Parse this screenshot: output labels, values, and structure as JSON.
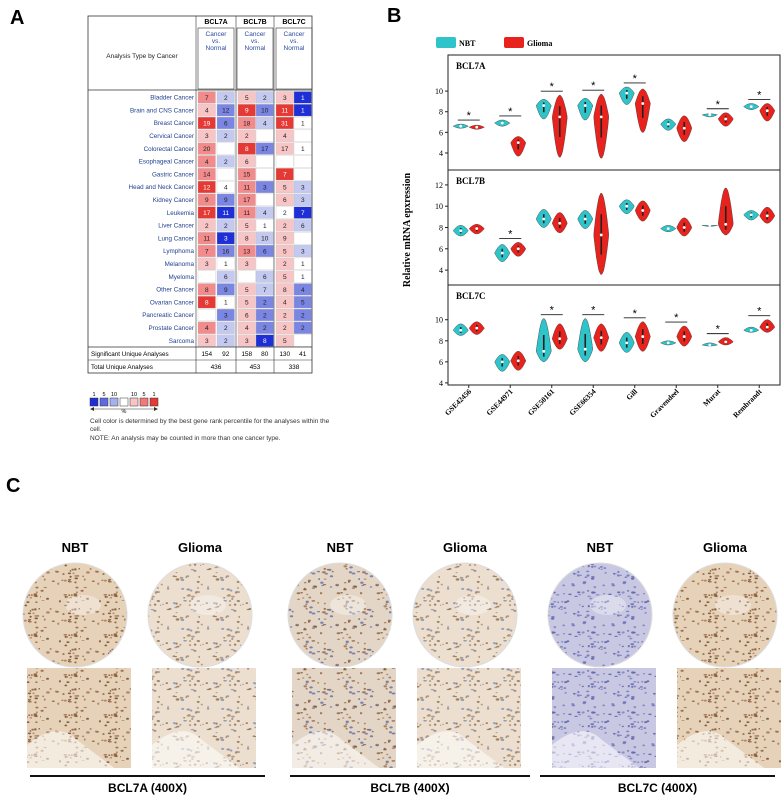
{
  "panel_a": {
    "label": "A",
    "header": "Analysis Type by Cancer",
    "genes": [
      "BCL7A",
      "BCL7B",
      "BCL7C"
    ],
    "subheader": "Cancer vs. Normal",
    "rows": [
      {
        "name": "Bladder Cancer",
        "values": [
          7,
          2,
          5,
          2,
          3,
          1
        ],
        "colors": [
          "#f28b8b",
          "#c4c9f0",
          "#f7c5c5",
          "#c4c9f0",
          "#f7c5c5",
          "#1f2fd6"
        ]
      },
      {
        "name": "Brain and CNS Cancer",
        "values": [
          4,
          12,
          9,
          10,
          11,
          1
        ],
        "colors": [
          "#f7c5c5",
          "#7b86e2",
          "#e53935",
          "#7b86e2",
          "#e53935",
          "#1f2fd6"
        ]
      },
      {
        "name": "Breast Cancer",
        "values": [
          19,
          6,
          18,
          4,
          31,
          1
        ],
        "colors": [
          "#e53935",
          "#7b86e2",
          "#f28b8b",
          "#c4c9f0",
          "#e53935",
          "#ffffff"
        ]
      },
      {
        "name": "Cervical Cancer",
        "values": [
          3,
          2,
          2,
          null,
          4,
          null
        ],
        "colors": [
          "#f7c5c5",
          "#c4c9f0",
          "#f7c5c5",
          "#ffffff",
          "#f7c5c5",
          "#ffffff"
        ]
      },
      {
        "name": "Colorectal Cancer",
        "values": [
          20,
          null,
          8,
          17,
          17,
          1
        ],
        "colors": [
          "#f28b8b",
          "#ffffff",
          "#e53935",
          "#7b86e2",
          "#f7c5c5",
          "#ffffff"
        ]
      },
      {
        "name": "Esophageal Cancer",
        "values": [
          4,
          2,
          6,
          null,
          null,
          null
        ],
        "colors": [
          "#f28b8b",
          "#c4c9f0",
          "#f7c5c5",
          "#ffffff",
          "#ffffff",
          "#ffffff"
        ]
      },
      {
        "name": "Gastric Cancer",
        "values": [
          14,
          null,
          15,
          null,
          7,
          null
        ],
        "colors": [
          "#f28b8b",
          "#ffffff",
          "#f28b8b",
          "#ffffff",
          "#e53935",
          "#ffffff"
        ]
      },
      {
        "name": "Head and Neck Cancer",
        "values": [
          12,
          4,
          11,
          3,
          5,
          3
        ],
        "colors": [
          "#e53935",
          "#ffffff",
          "#f28b8b",
          "#7b86e2",
          "#f7c5c5",
          "#c4c9f0"
        ]
      },
      {
        "name": "Kidney Cancer",
        "values": [
          9,
          9,
          17,
          null,
          6,
          3
        ],
        "colors": [
          "#f28b8b",
          "#7b86e2",
          "#f28b8b",
          "#ffffff",
          "#f7c5c5",
          "#c4c9f0"
        ]
      },
      {
        "name": "Leukemia",
        "values": [
          17,
          11,
          11,
          4,
          2,
          7
        ],
        "colors": [
          "#e53935",
          "#1f2fd6",
          "#f28b8b",
          "#c4c9f0",
          "#ffffff",
          "#1f2fd6"
        ]
      },
      {
        "name": "Liver Cancer",
        "values": [
          2,
          2,
          5,
          1,
          2,
          6
        ],
        "colors": [
          "#f7c5c5",
          "#c4c9f0",
          "#f7c5c5",
          "#ffffff",
          "#f7c5c5",
          "#c4c9f0"
        ]
      },
      {
        "name": "Lung Cancer",
        "values": [
          11,
          3,
          8,
          10,
          9,
          null
        ],
        "colors": [
          "#f28b8b",
          "#1f2fd6",
          "#f7c5c5",
          "#c4c9f0",
          "#f7c5c5",
          "#ffffff"
        ]
      },
      {
        "name": "Lymphoma",
        "values": [
          7,
          16,
          13,
          6,
          5,
          3
        ],
        "colors": [
          "#f28b8b",
          "#7b86e2",
          "#f28b8b",
          "#7b86e2",
          "#f7c5c5",
          "#c4c9f0"
        ]
      },
      {
        "name": "Melanoma",
        "values": [
          3,
          1,
          3,
          null,
          2,
          1
        ],
        "colors": [
          "#f7c5c5",
          "#ffffff",
          "#f7c5c5",
          "#ffffff",
          "#f7c5c5",
          "#ffffff"
        ]
      },
      {
        "name": "Myeloma",
        "values": [
          null,
          6,
          null,
          6,
          5,
          1
        ],
        "colors": [
          "#ffffff",
          "#c4c9f0",
          "#ffffff",
          "#c4c9f0",
          "#f7c5c5",
          "#ffffff"
        ]
      },
      {
        "name": "Other Cancer",
        "values": [
          8,
          9,
          5,
          7,
          8,
          4
        ],
        "colors": [
          "#f28b8b",
          "#7b86e2",
          "#f7c5c5",
          "#c4c9f0",
          "#f7c5c5",
          "#7b86e2"
        ]
      },
      {
        "name": "Ovarian Cancer",
        "values": [
          8,
          1,
          5,
          2,
          4,
          5
        ],
        "colors": [
          "#e53935",
          "#ffffff",
          "#f7c5c5",
          "#7b86e2",
          "#f7c5c5",
          "#7b86e2"
        ]
      },
      {
        "name": "Pancreatic Cancer",
        "values": [
          null,
          3,
          6,
          2,
          2,
          2
        ],
        "colors": [
          "#ffffff",
          "#7b86e2",
          "#f7c5c5",
          "#7b86e2",
          "#f7c5c5",
          "#7b86e2"
        ]
      },
      {
        "name": "Prostate Cancer",
        "values": [
          4,
          2,
          4,
          2,
          2,
          2
        ],
        "colors": [
          "#f28b8b",
          "#c4c9f0",
          "#f7c5c5",
          "#7b86e2",
          "#f7c5c5",
          "#7b86e2"
        ]
      },
      {
        "name": "Sarcoma",
        "values": [
          3,
          2,
          3,
          8,
          5,
          null
        ],
        "colors": [
          "#f7c5c5",
          "#c4c9f0",
          "#f7c5c5",
          "#1f2fd6",
          "#f7c5c5",
          "#ffffff"
        ]
      }
    ],
    "significant": {
      "name": "Significant Unique Analyses",
      "values": [
        154,
        92,
        158,
        80,
        130,
        41
      ]
    },
    "total": {
      "name": "Total Unique Analyses",
      "values": [
        436,
        453,
        338
      ]
    },
    "legend": {
      "down": [
        1,
        5,
        10
      ],
      "up": [
        10,
        5,
        1
      ],
      "unit": "%",
      "colors": [
        "#1f2fd6",
        "#5c6be0",
        "#a9b0ec",
        "#ffffff",
        "#f7c5c5",
        "#f07a7a",
        "#e53935"
      ]
    },
    "notes": [
      "Cell color is determined by the best gene rank percentile for the analyses within the cell.",
      "NOTE: An analysis may be counted in more than one cancer type."
    ]
  },
  "panel_b": {
    "label": "B",
    "ylabel": "Relative  mRNA epxression",
    "legend": [
      {
        "name": "NBT",
        "color": "#2ec4c9"
      },
      {
        "name": "Glioma",
        "color": "#e8221c"
      }
    ],
    "categories": [
      "GSE42456",
      "GSE44971",
      "GSE50161",
      "GSE66354",
      "Gill",
      "Gravendeel",
      "Murat",
      "Rembrandt"
    ],
    "genes": [
      {
        "name": "BCL7A",
        "ylim": [
          2.35,
          13.5
        ],
        "yticks": [
          4,
          6,
          8,
          10
        ],
        "significance": [
          "*",
          "*",
          "*",
          "*",
          "*",
          null,
          "*",
          "*"
        ],
        "series": [
          {
            "median": [
              6.6,
              6.9,
              8.6,
              8.6,
              9.8,
              6.8,
              7.7,
              8.5
            ],
            "min": [
              6.4,
              6.6,
              7.3,
              7.2,
              8.7,
              6.2,
              7.5,
              8.2
            ],
            "max": [
              6.8,
              7.2,
              9.2,
              9.3,
              10.4,
              7.3,
              7.8,
              8.8
            ]
          },
          {
            "median": [
              6.5,
              5.0,
              7.5,
              7.5,
              8.8,
              6.4,
              7.3,
              8.1
            ],
            "min": [
              6.3,
              3.7,
              3.6,
              3.5,
              6.0,
              5.1,
              6.6,
              7.1
            ],
            "max": [
              6.7,
              5.6,
              9.6,
              9.7,
              10.2,
              7.6,
              7.9,
              8.8
            ]
          }
        ]
      },
      {
        "name": "BCL7B",
        "ylim": [
          2.6,
          13.4
        ],
        "yticks": [
          4,
          6,
          8,
          10,
          12
        ],
        "significance": [
          null,
          "*",
          null,
          null,
          null,
          null,
          null,
          null
        ],
        "series": [
          {
            "median": [
              7.7,
              5.6,
              8.8,
              8.8,
              10.0,
              7.9,
              8.2,
              9.2
            ],
            "min": [
              7.2,
              4.8,
              8.0,
              7.9,
              9.3,
              7.6,
              8.1,
              8.7
            ],
            "max": [
              8.2,
              6.4,
              9.7,
              9.6,
              10.6,
              8.2,
              8.2,
              9.6
            ]
          },
          {
            "median": [
              7.9,
              6.0,
              8.4,
              7.3,
              9.6,
              8.0,
              8.3,
              9.1
            ],
            "min": [
              7.4,
              5.3,
              7.5,
              3.6,
              8.6,
              7.2,
              7.3,
              8.4
            ],
            "max": [
              8.3,
              6.6,
              9.4,
              11.2,
              10.5,
              8.9,
              11.7,
              9.9
            ]
          }
        ]
      },
      {
        "name": "BCL7C",
        "ylim": [
          3.8,
          13.3
        ],
        "yticks": [
          4,
          6,
          8,
          10
        ],
        "significance": [
          null,
          null,
          "*",
          "*",
          "*",
          "*",
          "*",
          "*"
        ],
        "series": [
          {
            "median": [
              9.0,
              6.0,
              7.0,
              7.2,
              7.8,
              7.8,
              7.6,
              9.0
            ],
            "min": [
              8.5,
              5.1,
              6.0,
              6.0,
              6.9,
              7.6,
              7.5,
              8.8
            ],
            "max": [
              9.6,
              6.7,
              10.1,
              10.1,
              8.8,
              8.0,
              7.8,
              9.3
            ]
          },
          {
            "median": [
              9.2,
              6.1,
              8.2,
              8.3,
              8.4,
              8.4,
              7.9,
              9.3
            ],
            "min": [
              8.6,
              5.2,
              7.2,
              7.0,
              7.0,
              7.5,
              7.6,
              8.8
            ],
            "max": [
              9.8,
              7.0,
              9.6,
              9.6,
              9.8,
              9.4,
              8.3,
              10.0
            ]
          }
        ]
      }
    ]
  },
  "panel_c": {
    "label": "C",
    "columns": [
      "NBT",
      "Glioma",
      "NBT",
      "Glioma",
      "NBT",
      "Glioma"
    ],
    "captions": [
      "BCL7A (400X)",
      "BCL7B (400X)",
      "BCL7C (400X)"
    ]
  }
}
